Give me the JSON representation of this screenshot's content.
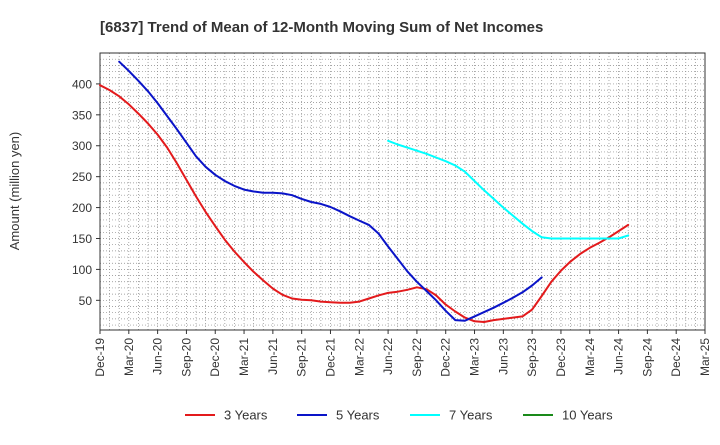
{
  "chart_data": {
    "type": "line",
    "title": "[6837]  Trend of Mean of 12-Month Moving Sum of Net Incomes",
    "xlabel": "",
    "ylabel": "Amount (million yen)",
    "x_ticks": [
      "Dec-19",
      "Mar-20",
      "Jun-20",
      "Sep-20",
      "Dec-20",
      "Mar-21",
      "Jun-21",
      "Sep-21",
      "Dec-21",
      "Mar-22",
      "Jun-22",
      "Sep-22",
      "Dec-22",
      "Mar-23",
      "Jun-23",
      "Sep-23",
      "Dec-23",
      "Mar-24",
      "Jun-24",
      "Sep-24",
      "Dec-24",
      "Mar-25"
    ],
    "y_ticks": [
      50,
      100,
      150,
      200,
      250,
      300,
      350,
      400
    ],
    "ylim": [
      2,
      450
    ],
    "grid": true,
    "legend_position": "bottom",
    "series": [
      {
        "name": "3 Years",
        "color": "#e31a1c",
        "start_index": 0,
        "values": [
          398,
          390,
          380,
          367,
          352,
          336,
          318,
          297,
          272,
          245,
          218,
          193,
          170,
          148,
          129,
          112,
          96,
          82,
          69,
          59,
          53,
          51,
          50,
          48,
          47,
          46,
          46,
          48,
          53,
          58,
          62,
          64,
          67,
          71,
          68,
          58,
          43,
          32,
          22,
          16,
          15,
          18,
          20,
          22,
          24,
          35,
          57,
          80,
          98,
          113,
          125,
          135,
          143,
          152,
          162,
          172
        ]
      },
      {
        "name": "5 Years",
        "color": "#0a14c8",
        "start_index": 2,
        "values": [
          436,
          421,
          405,
          388,
          369,
          348,
          327,
          305,
          283,
          266,
          253,
          243,
          235,
          229,
          226,
          224,
          224,
          223,
          220,
          214,
          209,
          206,
          201,
          194,
          186,
          179,
          172,
          158,
          137,
          117,
          97,
          80,
          65,
          50,
          33,
          18,
          17,
          24,
          31,
          38,
          46,
          54,
          63,
          74,
          87
        ]
      },
      {
        "name": "7 Years",
        "color": "#00ffff",
        "start_index": 30,
        "values": [
          308,
          302,
          297,
          292,
          287,
          281,
          275,
          268,
          258,
          243,
          228,
          214,
          200,
          187,
          174,
          162,
          152,
          150,
          150,
          150,
          150,
          150,
          150,
          150,
          150,
          155
        ]
      },
      {
        "name": "10 Years",
        "color": "#1a8a1a",
        "start_index": 0,
        "values": []
      }
    ]
  }
}
